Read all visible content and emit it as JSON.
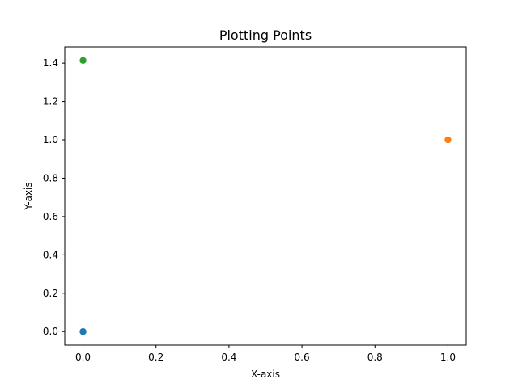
{
  "chart_data": {
    "type": "scatter",
    "title": "Plotting Points",
    "xlabel": "X-axis",
    "ylabel": "Y-axis",
    "xlim": [
      -0.05,
      1.05
    ],
    "ylim": [
      -0.0707,
      1.4849
    ],
    "x_ticks": [
      {
        "value": 0.0,
        "label": "0.0"
      },
      {
        "value": 0.2,
        "label": "0.2"
      },
      {
        "value": 0.4,
        "label": "0.4"
      },
      {
        "value": 0.6,
        "label": "0.6"
      },
      {
        "value": 0.8,
        "label": "0.8"
      },
      {
        "value": 1.0,
        "label": "1.0"
      }
    ],
    "y_ticks": [
      {
        "value": 0.0,
        "label": "0.0"
      },
      {
        "value": 0.2,
        "label": "0.2"
      },
      {
        "value": 0.4,
        "label": "0.4"
      },
      {
        "value": 0.6,
        "label": "0.6"
      },
      {
        "value": 0.8,
        "label": "0.8"
      },
      {
        "value": 1.0,
        "label": "1.0"
      },
      {
        "value": 1.2,
        "label": "1.2"
      },
      {
        "value": 1.4,
        "label": "1.4"
      }
    ],
    "grid": false,
    "series": [
      {
        "color": "#1f77b4",
        "x": [
          0.0
        ],
        "y": [
          0.0
        ]
      },
      {
        "color": "#ff7f0e",
        "x": [
          1.0
        ],
        "y": [
          1.0
        ]
      },
      {
        "color": "#2ca02c",
        "x": [
          0.0
        ],
        "y": [
          1.414
        ]
      }
    ]
  }
}
